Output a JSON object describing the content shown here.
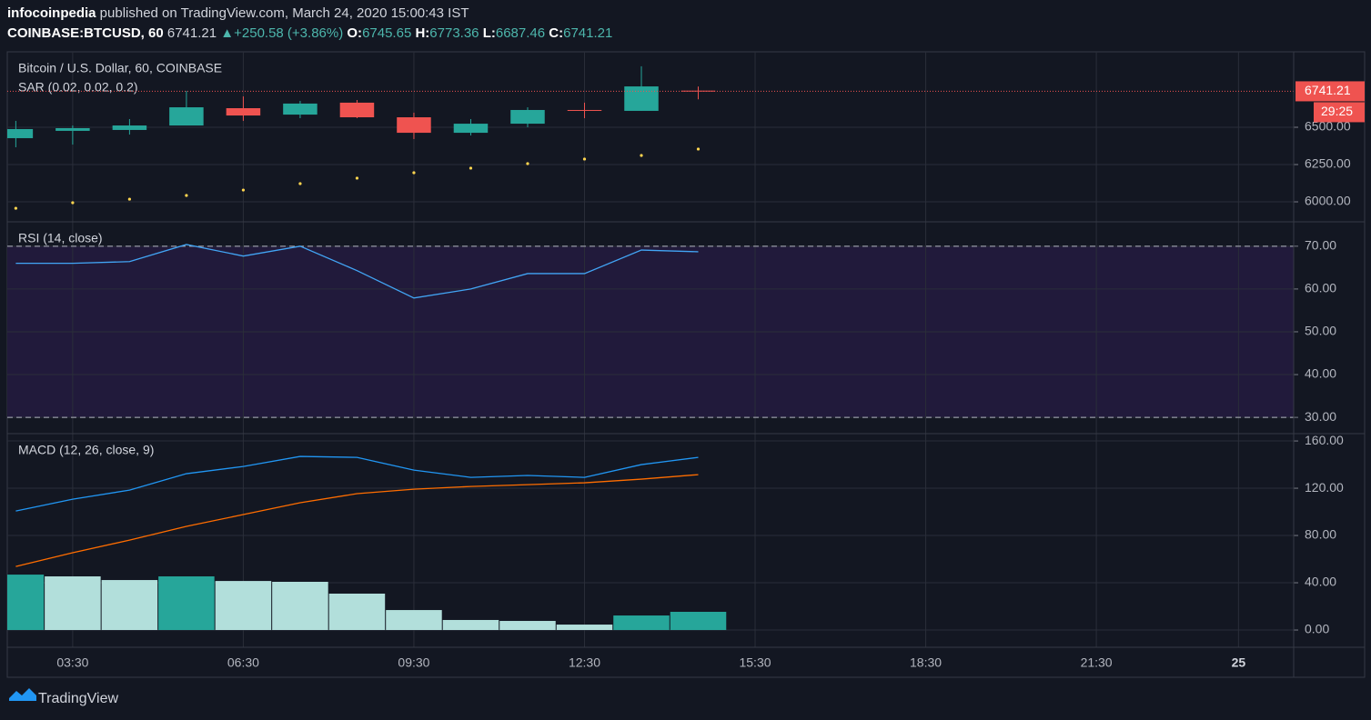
{
  "header": {
    "author": "infocoinpedia",
    "published": "published on TradingView.com, March 24, 2020 15:00:43 IST",
    "symbol": "COINBASE:BTCUSD, 60",
    "arrow": "▲",
    "change": "+250.58 (+3.86%)",
    "o": "O:",
    "h": "H:",
    "l": "L:",
    "c": "C:",
    "countdown": "29:25"
  },
  "footer": {
    "brand": "TradingView"
  },
  "chart_data": [
    {
      "type": "candlestick",
      "title": "Bitcoin / U.S. Dollar, 60, COINBASE",
      "x": [
        2.5,
        3.5,
        4.5,
        5.5,
        6.5,
        7.5,
        8.5,
        9.5,
        10.5,
        11.5,
        12.5,
        13.5,
        14.5
      ],
      "open": [
        6427,
        6476,
        6482,
        6512,
        6628,
        6585,
        6665,
        6567,
        6463,
        6524,
        6616,
        6610,
        6745.65
      ],
      "high": [
        6543,
        6512,
        6555,
        6744,
        6707,
        6677,
        6683,
        6598,
        6555,
        6634,
        6665,
        6909,
        6773.36
      ],
      "low": [
        6366,
        6384,
        6451,
        6512,
        6543,
        6561,
        6561,
        6421,
        6445,
        6500,
        6561,
        6610,
        6687.46
      ],
      "close": [
        6488,
        6494,
        6512,
        6634,
        6579,
        6659,
        6567,
        6463,
        6524,
        6616,
        6610,
        6774,
        6741.21
      ],
      "up_color": "#26a69a",
      "down_color": "#ef5350",
      "series": [
        {
          "name": "SAR (0.02, 0.02, 0.2)",
          "color": "#ffd54f",
          "values": [
            5957,
            5994,
            6018,
            6043,
            6079,
            6122,
            6159,
            6195,
            6226,
            6256,
            6287,
            6311,
            6354
          ]
        }
      ],
      "xlim": [
        2.35,
        24.97
      ],
      "ylim": [
        5866,
        7006
      ],
      "yticks": [
        {
          "value": 6000,
          "label": "6000.00"
        },
        {
          "value": 6250,
          "label": "6250.00"
        },
        {
          "value": 6500,
          "label": "6500.00"
        }
      ],
      "grid": true
    },
    {
      "type": "line",
      "title": "RSI (14, close)",
      "x": [
        2.5,
        3.5,
        4.5,
        5.5,
        6.5,
        7.5,
        8.5,
        9.5,
        10.5,
        11.5,
        12.5,
        13.5,
        14.5
      ],
      "series": [
        {
          "color": "#42a5f5",
          "values": [
            66.0,
            66.0,
            66.4,
            70.4,
            67.7,
            70.0,
            64.3,
            57.9,
            60.0,
            63.6,
            63.6,
            69.1,
            68.7
          ]
        }
      ],
      "band": [
        30,
        70
      ],
      "band_color": "#211a3b",
      "xlim": [
        2.35,
        24.97
      ],
      "ylim": [
        26.2,
        75.7
      ],
      "yticks": [
        {
          "value": 30,
          "label": "30.00"
        },
        {
          "value": 40,
          "label": "40.00"
        },
        {
          "value": 50,
          "label": "50.00"
        },
        {
          "value": 60,
          "label": "60.00"
        },
        {
          "value": 70,
          "label": "70.00"
        }
      ],
      "grid": true
    },
    {
      "type": "macd",
      "title": "MACD (12, 26, close, 9)",
      "x": [
        2.5,
        3.5,
        4.5,
        5.5,
        6.5,
        7.5,
        8.5,
        9.5,
        10.5,
        11.5,
        12.5,
        13.5,
        14.5
      ],
      "series": [
        {
          "color": "#2196f3",
          "values": [
            100.7,
            110.7,
            118.4,
            132.3,
            138.4,
            146.9,
            146.1,
            135.3,
            129.2,
            130.8,
            129.2,
            140.0,
            146.1
          ]
        },
        {
          "color": "#ff6d00",
          "values": [
            53.8,
            65.4,
            76.1,
            87.7,
            97.7,
            107.7,
            115.4,
            119.2,
            121.5,
            123.0,
            124.6,
            127.7,
            131.5
          ]
        }
      ],
      "histogram": [
        46.9,
        45.4,
        42.3,
        45.4,
        41.5,
        40.8,
        30.8,
        16.9,
        8.5,
        7.7,
        4.6,
        12.3,
        15.4
      ],
      "histogram_colors": [
        "#26a69a",
        "#b2dfdb",
        "#b2dfdb",
        "#26a69a",
        "#b2dfdb",
        "#b2dfdb",
        "#b2dfdb",
        "#b2dfdb",
        "#b2dfdb",
        "#b2dfdb",
        "#b2dfdb",
        "#26a69a",
        "#26a69a"
      ],
      "xlim": [
        2.35,
        24.97
      ],
      "ylim": [
        -14.6,
        166.2
      ],
      "yticks": [
        {
          "value": 0,
          "label": "0.00"
        },
        {
          "value": 40,
          "label": "40.00"
        },
        {
          "value": 80,
          "label": "80.00"
        },
        {
          "value": 120,
          "label": "120.00"
        },
        {
          "value": 160,
          "label": "160.00"
        }
      ],
      "xticks": [
        {
          "value": 3.5,
          "label": "03:30"
        },
        {
          "value": 6.5,
          "label": "06:30"
        },
        {
          "value": 9.5,
          "label": "09:30"
        },
        {
          "value": 12.5,
          "label": "12:30"
        },
        {
          "value": 15.5,
          "label": "15:30"
        },
        {
          "value": 18.5,
          "label": "18:30"
        },
        {
          "value": 21.5,
          "label": "21:30"
        },
        {
          "value": 24,
          "label": "25"
        }
      ],
      "grid": true
    }
  ]
}
